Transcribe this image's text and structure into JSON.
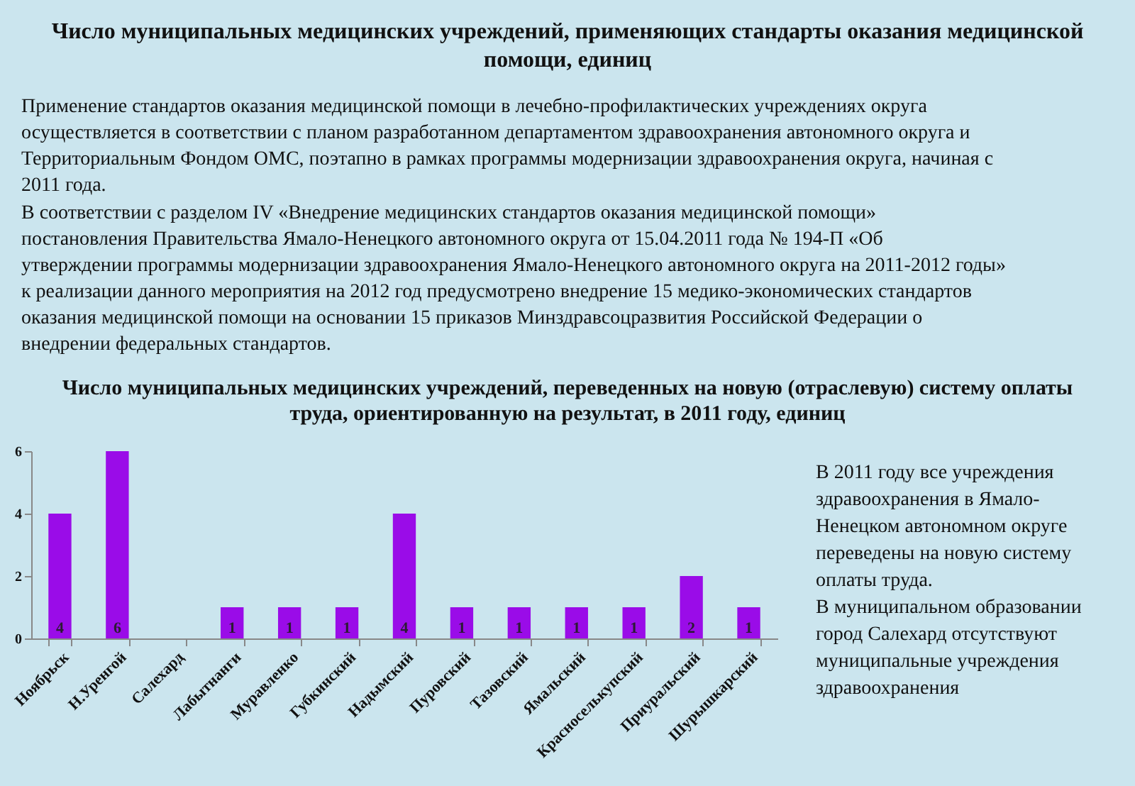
{
  "chart_data": {
    "type": "bar",
    "title": "Число муниципальных медицинских учреждений, переведенных на новую (отраслевую) систему оплаты труда, ориентированную на результат, в 2011 году, единиц",
    "categories": [
      "Ноябрьск",
      "Н.Уренгой",
      "Салехард",
      "Лабытнанги",
      "Муравленко",
      "Губкинский",
      "Надымский",
      "Пуровский",
      "Тазовский",
      "Ямальский",
      "Красноселькупский",
      "Приуральский",
      "Шурышкарский"
    ],
    "values": [
      4,
      6,
      null,
      1,
      1,
      1,
      4,
      1,
      1,
      1,
      1,
      2,
      1
    ],
    "color": "#9a0ce8",
    "ylim": [
      0,
      6
    ],
    "yticks": [
      0,
      2,
      4,
      6
    ],
    "grid": false,
    "data_labels": true,
    "annotations": [
      "Число муниципальных медицинских учреждений, применяющих стандарты оказания медицинской помощи, единиц",
      "Применение стандартов оказания медицинской помощи в лечебно-профилактических учреждениях округа осуществляется в соответствии с планом разработанном департаментом здравоохранения автономного округа и Территориальным Фондом ОМС, поэтапно в рамках программы модернизации здравоохранения округа, начиная с 2011 года.",
      "В соответствии с разделом IV «Внедрение медицинских стандартов оказания медицинской помощи» постановления Правительства Ямало-Ненецкого автономного округа от 15.04.2011 года № 194-П «Об утверждении программы модернизации здравоохранения Ямало-Ненецкого автономного округа на 2011-2012 годы» к реализации данного мероприятия на 2012 год предусмотрено внедрение 15 медико-экономических стандартов оказания медицинской помощи на основании 15 приказов Минздравсоцразвития Российской Федерации о внедрении федеральных стандартов.",
      "В 2011 году все учреждения здравоохранения в Ямало-Ненецком автономном округе переведены на новую систему оплаты труда.",
      "В муниципальном образовании город Салехард отсутствуют муниципальные учреждения здравоохранения"
    ]
  }
}
